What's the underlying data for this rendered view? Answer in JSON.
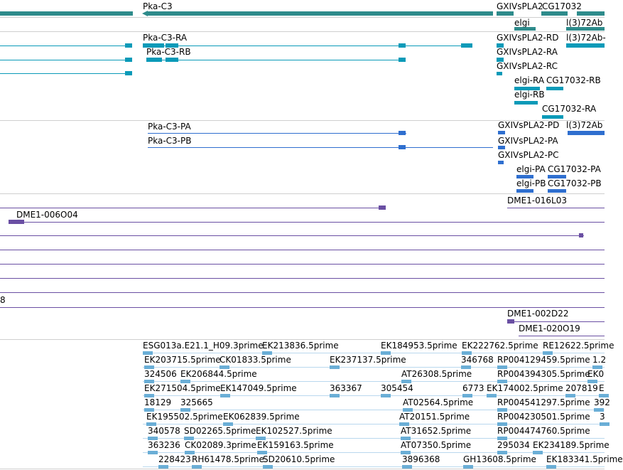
{
  "colors": {
    "gene": "#2e8b8b",
    "rna": "#0a9ab8",
    "protein": "#2f6fcf",
    "reagent": "#6a4fa3",
    "est": "#6aaed6",
    "separator": "#d0d0d0"
  },
  "tracks": {
    "gene": {
      "features": [
        "Pka-C3",
        "GXIVsPLA2",
        "CG17032",
        "elgi",
        "l(3)72Ab"
      ]
    },
    "transcripts": {
      "features": [
        "Pka-C3-RA",
        "Pka-C3-RB",
        "GXIVsPLA2-RD",
        "GXIVsPLA2-RA",
        "GXIVsPLA2-RC",
        "elgi-RA",
        "CG17032-RB",
        "elgi-RB",
        "CG17032-RA",
        "l(3)72Ab-"
      ]
    },
    "proteins": {
      "features": [
        "Pka-C3-PA",
        "Pka-C3-PB",
        "GXIVsPLA2-PD",
        "l(3)72Ab",
        "GXIVsPLA2-PA",
        "GXIVsPLA2-PC",
        "elgi-PA",
        "CG17032-PA",
        "elgi-PB",
        "CG17032-PB"
      ]
    },
    "reagents": {
      "features": [
        "DME1-016L03",
        "DME1-006O04",
        "8",
        "DME1-002D22",
        "DME1-020O19"
      ]
    },
    "ests": {
      "rows": [
        [
          "ESG013a.E21.1_H09.3prime",
          "EK213836.5prime",
          "EK184953.5prime",
          "EK222762.5prime",
          "RE12622.5prime"
        ],
        [
          "EK203715.5prime",
          "CK01833.5prime",
          "EK237137.5prime",
          "346768",
          "RP004129459.5prime",
          "1.2"
        ],
        [
          "324506",
          "EK206844.5prime",
          "AT26308.5prime",
          "RP004394305.5prime",
          "EK0"
        ],
        [
          "EK271504.5prime",
          "EK147049.5prime",
          "363367",
          "305454",
          "6773",
          "EK174002.5prime",
          "207819",
          "E"
        ],
        [
          "18129",
          "325665",
          "AT02564.5prime",
          "RP004541297.5prime",
          "392"
        ],
        [
          "EK195502.5prime",
          "EK062839.5prime",
          "AT20151.5prime",
          "RP004230501.5prime",
          "3"
        ],
        [
          "340578",
          "SD02265.5prime",
          "EK102527.5prime",
          "AT31652.5prime",
          "RP004474760.5prime"
        ],
        [
          "363236",
          "CK02089.3prime",
          "EK159163.5prime",
          "AT07350.5prime",
          "295034",
          "EK234189.5prime"
        ],
        [
          "228423",
          "RH61478.5prime",
          "SD20610.5prime",
          "3896368",
          "GH13608.5prime",
          "EK183341.5prime"
        ]
      ]
    }
  }
}
